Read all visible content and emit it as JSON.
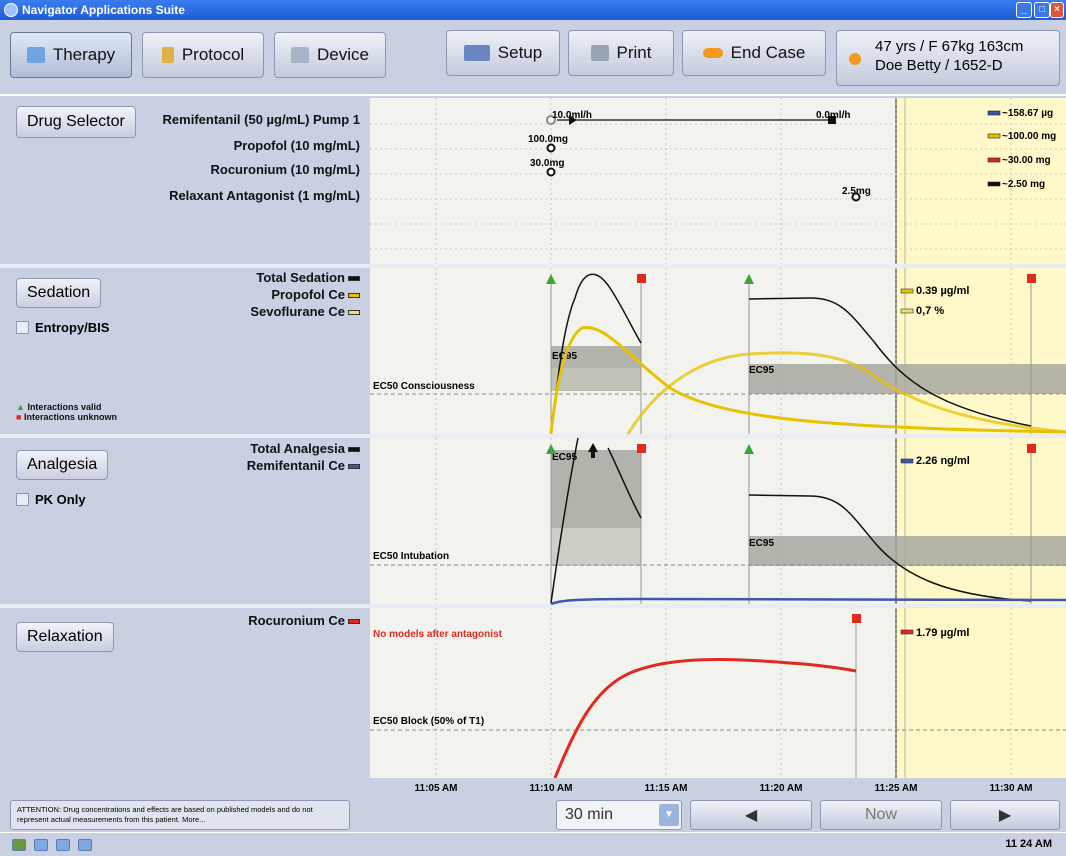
{
  "window": {
    "title": "Navigator Applications Suite"
  },
  "toolbar": {
    "therapy": "Therapy",
    "protocol": "Protocol",
    "device": "Device",
    "setup": "Setup",
    "print": "Print",
    "end_case": "End Case"
  },
  "patient": {
    "line1": "47 yrs / F  67kg  163cm",
    "line2": "Doe Betty / 1652-D"
  },
  "drug_selector": {
    "button": "Drug Selector",
    "drugs": [
      "Remifentanil (50 µg/mL) Pump 1",
      "Propofol (10 mg/mL)",
      "Rocuronium (10 mg/mL)",
      "Relaxant Antagonist (1 mg/mL)"
    ],
    "events": [
      "10.0ml/h",
      "0.0ml/h",
      "100.0mg",
      "30.0mg",
      "2.5mg"
    ],
    "totals": [
      "~158.67 µg",
      "~100.00 mg",
      "~30.00 mg",
      "~2.50 mg"
    ]
  },
  "sedation": {
    "button": "Sedation",
    "checkbox": "Entropy/BIS",
    "series": [
      "Total Sedation",
      "Propofol Ce",
      "Sevoflurane Ce"
    ],
    "legend_valid": "Interactions valid",
    "legend_unknown": "Interactions unknown",
    "ec50": "EC50 Consciousness",
    "ec95": "EC95",
    "values": [
      "0.39 µg/ml",
      "0,7 %"
    ]
  },
  "analgesia": {
    "button": "Analgesia",
    "checkbox": "PK Only",
    "series": [
      "Total Analgesia",
      "Remifentanil Ce"
    ],
    "ec50": "EC50 Intubation",
    "ec95": "EC95",
    "values": [
      "2.26 ng/ml"
    ]
  },
  "relaxation": {
    "button": "Relaxation",
    "series": [
      "Rocuronium Ce"
    ],
    "no_models": "No models after antagonist",
    "ec50": "EC50 Block (50% of T1)",
    "values": [
      "1.79 µg/ml"
    ]
  },
  "time_axis": [
    "11:05 AM",
    "11:10 AM",
    "11:15 AM",
    "11:20 AM",
    "11:25 AM",
    "11:30 AM"
  ],
  "bottom": {
    "note": "ATTENTION: Drug concentrations and effects are based on published models and do not represent actual measurements from this patient. More...",
    "range": "30 min",
    "prev": "◀",
    "now": "Now",
    "next": "▶"
  },
  "status": {
    "clock": "11 24 AM"
  },
  "colors": {
    "sedation": "#111111",
    "propofol": "#e8c200",
    "remifentanil": "#3f55b0",
    "rocuronium": "#e02a20",
    "future": "#fff8c8"
  }
}
